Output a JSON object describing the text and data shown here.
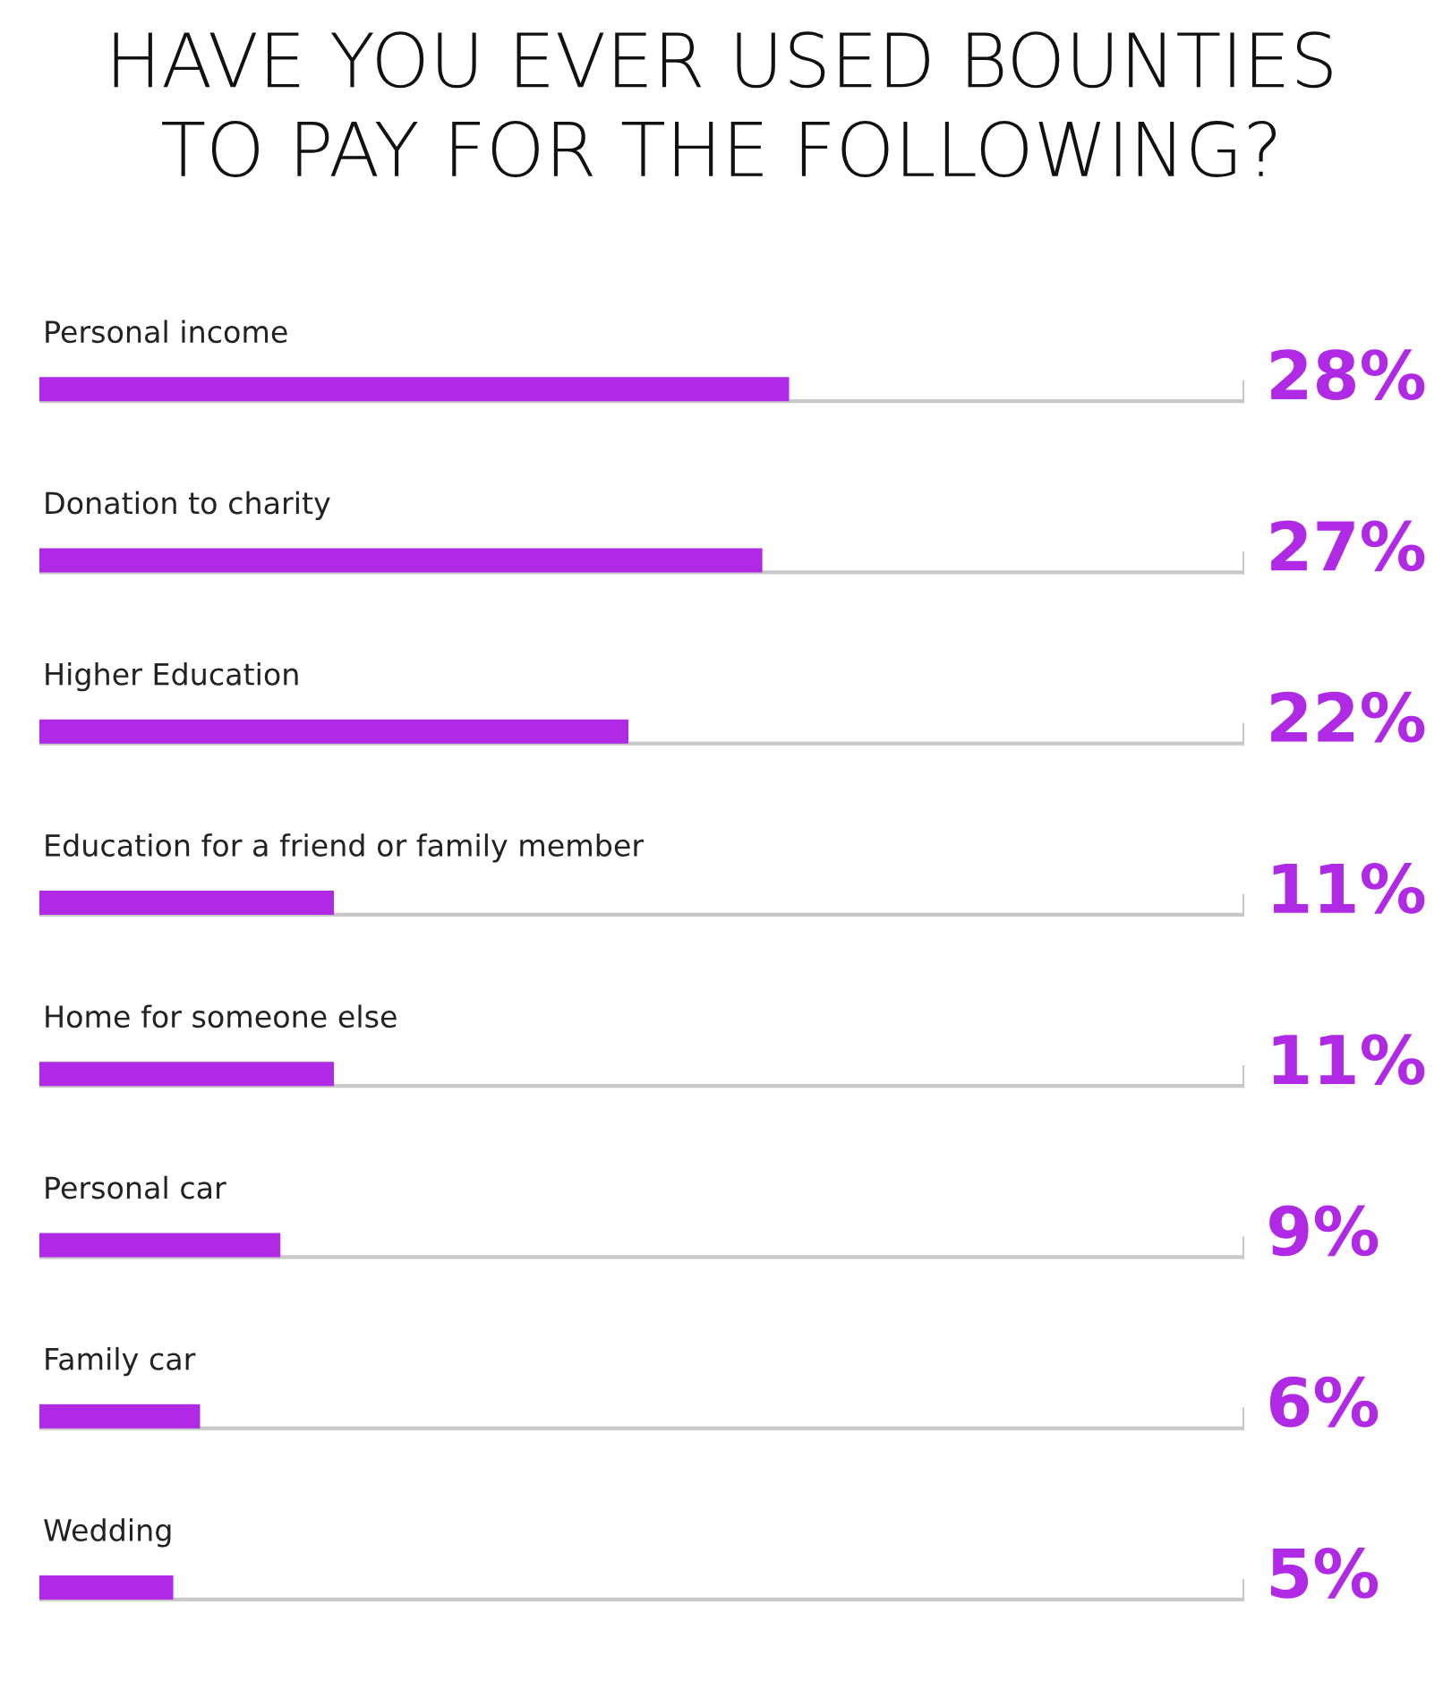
{
  "chart_data": {
    "type": "bar",
    "orientation": "horizontal",
    "title": "HAVE YOU EVER USED BOUNTIES\nTO PAY FOR THE FOLLOWING?",
    "categories": [
      "Personal income",
      "Donation to charity",
      "Higher Education",
      "Education for a friend or family member",
      "Home for someone else",
      "Personal car",
      "Family car",
      "Wedding"
    ],
    "values": [
      28,
      27,
      22,
      11,
      11,
      9,
      6,
      5
    ],
    "value_labels": [
      "28%",
      "27%",
      "22%",
      "11%",
      "11%",
      "9%",
      "6%",
      "5%"
    ],
    "color": "#b02ae6",
    "xlim": [
      0,
      45
    ]
  }
}
